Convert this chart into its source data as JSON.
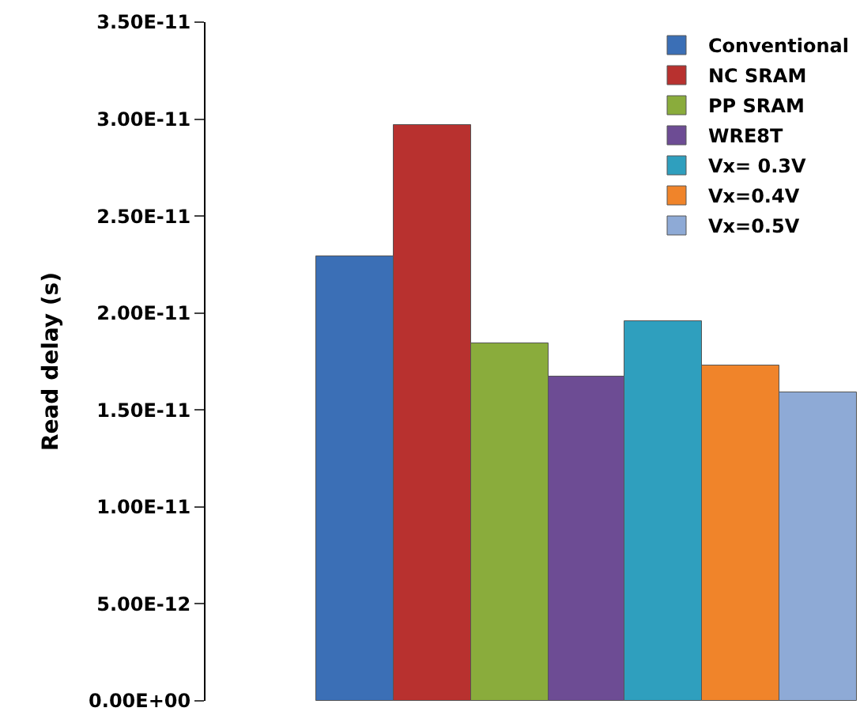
{
  "chart_data": {
    "type": "bar",
    "ylabel": "Read delay (s)",
    "categories": [
      null
    ],
    "series": [
      {
        "name": "Conventional",
        "color": "#3b6fb6",
        "values": [
          2.29e-11
        ]
      },
      {
        "name": "NC SRAM",
        "color": "#b8312f",
        "values": [
          2.97e-11
        ]
      },
      {
        "name": "PP SRAM",
        "color": "#8aac3c",
        "values": [
          1.84e-11
        ]
      },
      {
        "name": "WRE8T",
        "color": "#6d4c94",
        "values": [
          1.67e-11
        ]
      },
      {
        "name": "Vx= 0.3V",
        "color": "#2f9fbe",
        "values": [
          1.96e-11
        ]
      },
      {
        "name": "Vx=0.4V",
        "color": "#f0842a",
        "values": [
          1.73e-11
        ]
      },
      {
        "name": "Vx=0.5V",
        "color": "#8eaad6",
        "values": [
          1.59e-11
        ]
      }
    ],
    "ylim": [
      0,
      3.5e-11
    ],
    "yticks": [
      {
        "value": 0,
        "label": "0.00E+00"
      },
      {
        "value": 5e-12,
        "label": "5.00E-12"
      },
      {
        "value": 1e-11,
        "label": "1.00E-11"
      },
      {
        "value": 1.5e-11,
        "label": "1.50E-11"
      },
      {
        "value": 2e-11,
        "label": "2.00E-11"
      },
      {
        "value": 2.5e-11,
        "label": "2.50E-11"
      },
      {
        "value": 3e-11,
        "label": "3.00E-11"
      },
      {
        "value": 3.5e-11,
        "label": "3.50E-11"
      }
    ],
    "legend": "top right"
  }
}
